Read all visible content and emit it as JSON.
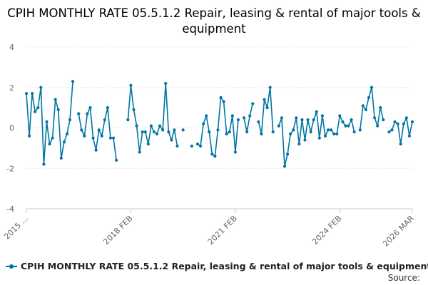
{
  "chart_data": {
    "type": "line",
    "title": "CPIH MONTHLY RATE 05.5.1.2 Repair, leasing & rental of major tools & equipment",
    "xlabel": "",
    "ylabel": "",
    "ylim": [
      -4,
      4
    ],
    "yticks": [
      -4,
      -2,
      0,
      2,
      4
    ],
    "grid": true,
    "legend_position": "bottom",
    "color": "#0075a3",
    "xticks": [
      {
        "index": 0,
        "label": "2015 ..."
      },
      {
        "index": 36,
        "label": "2018 FEB"
      },
      {
        "index": 72,
        "label": "2021 FEB"
      },
      {
        "index": 108,
        "label": "2024 FEB"
      },
      {
        "index": 133,
        "label": "2026 MAR"
      }
    ],
    "series": [
      {
        "name": "CPIH MONTHLY RATE 05.5.1.2 Repair, leasing & rental of major tools & equipment",
        "values": [
          1.7,
          -0.4,
          1.7,
          0.8,
          1.0,
          2.0,
          -1.8,
          0.3,
          -0.8,
          -0.5,
          1.4,
          0.9,
          -1.5,
          -0.7,
          -0.3,
          0.4,
          2.3,
          null,
          0.7,
          -0.1,
          -0.4,
          0.7,
          1.0,
          -0.5,
          -1.1,
          -0.1,
          -0.4,
          0.4,
          1.0,
          -0.5,
          -0.5,
          -1.6,
          null,
          null,
          null,
          0.4,
          2.1,
          0.9,
          0.1,
          -1.2,
          -0.2,
          -0.2,
          -0.8,
          0.1,
          -0.2,
          -0.3,
          0.1,
          -0.1,
          2.2,
          -0.2,
          -0.6,
          -0.1,
          -0.9,
          null,
          -0.1,
          null,
          null,
          -0.9,
          null,
          -0.8,
          -0.9,
          0.2,
          0.6,
          -0.2,
          -1.3,
          -1.4,
          -0.1,
          1.5,
          1.3,
          -0.3,
          -0.2,
          0.6,
          -1.2,
          0.4,
          null,
          0.5,
          -0.2,
          0.6,
          1.2,
          null,
          0.3,
          -0.3,
          1.4,
          1.0,
          2.0,
          -0.2,
          null,
          0.1,
          0.5,
          -1.9,
          -1.3,
          -0.3,
          -0.1,
          0.5,
          -0.8,
          0.4,
          -0.6,
          0.4,
          -0.2,
          0.4,
          0.8,
          -0.5,
          0.6,
          -0.4,
          -0.1,
          -0.1,
          -0.3,
          -0.3,
          0.6,
          0.3,
          0.1,
          0.1,
          0.4,
          -0.2,
          null,
          -0.1,
          1.1,
          0.9,
          1.5,
          2.0,
          0.5,
          0.1,
          1.0,
          0.4,
          null,
          -0.2,
          -0.1,
          0.3,
          0.2,
          -0.8,
          0.2,
          0.5,
          -0.4,
          0.3
        ]
      }
    ]
  },
  "legend": {
    "label": "CPIH MONTHLY RATE 05.5.1.2 Repair, leasing & rental of major tools & equipment"
  },
  "source_label": "Source:"
}
